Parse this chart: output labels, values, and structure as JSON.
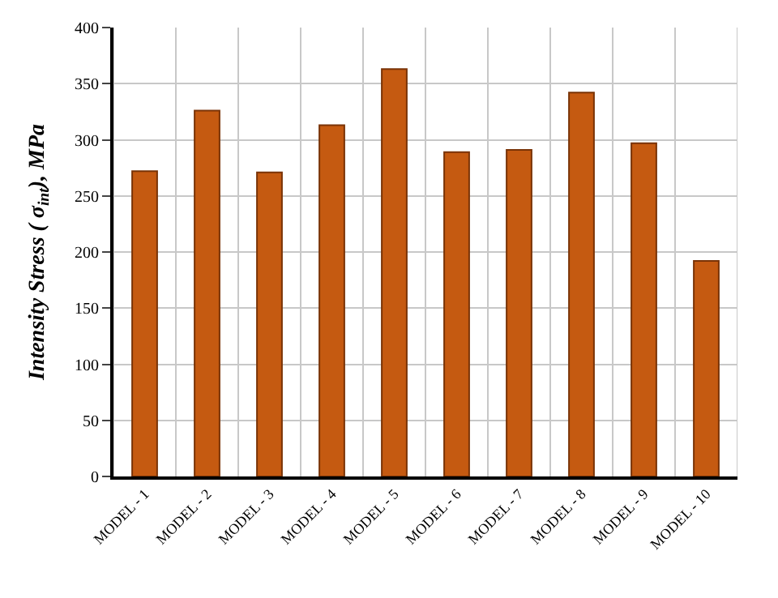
{
  "chart_data": {
    "type": "bar",
    "ylabel": "Intensity Stress ( σ$_{int}$), MPa",
    "categories": [
      "MODEL - 1",
      "MODEL - 2",
      "MODEL - 3",
      "MODEL - 4",
      "MODEL - 5",
      "MODEL - 6",
      "MODEL - 7",
      "MODEL - 8",
      "MODEL - 9",
      "MODEL - 10"
    ],
    "values": [
      272,
      326,
      271,
      313,
      363,
      289,
      291,
      342,
      297,
      192
    ],
    "color": "#c55a11",
    "ylim": [
      0,
      400
    ],
    "yticks": [
      0,
      50,
      100,
      150,
      200,
      250,
      300,
      350,
      400
    ],
    "grid": true
  }
}
